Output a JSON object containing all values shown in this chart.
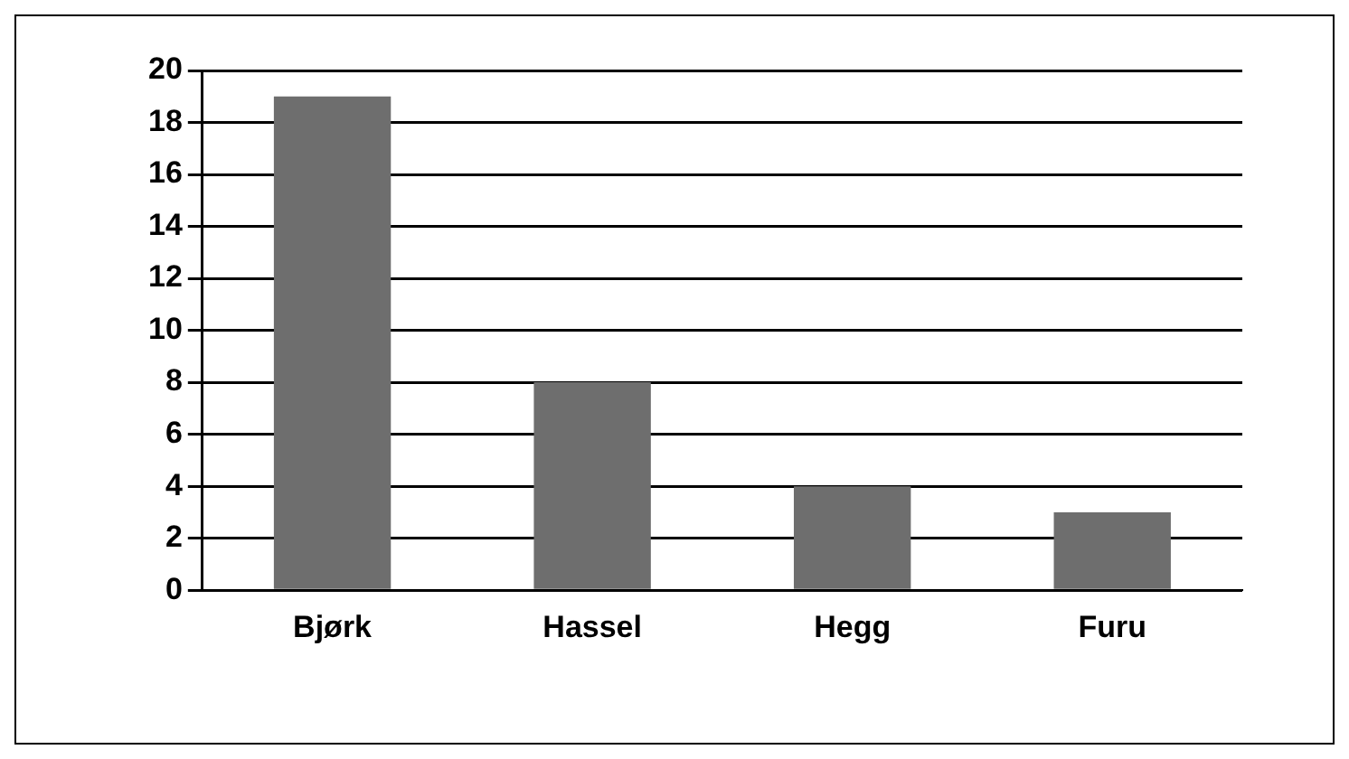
{
  "chart_data": {
    "type": "bar",
    "categories": [
      "Bjørk",
      "Hassel",
      "Hegg",
      "Furu"
    ],
    "values": [
      19,
      8,
      4,
      3
    ],
    "color": "#6e6e6e",
    "ylim": [
      0,
      20
    ],
    "yticks": [
      0,
      2,
      4,
      6,
      8,
      10,
      12,
      14,
      16,
      18,
      20
    ],
    "grid": "y",
    "legend": false
  }
}
